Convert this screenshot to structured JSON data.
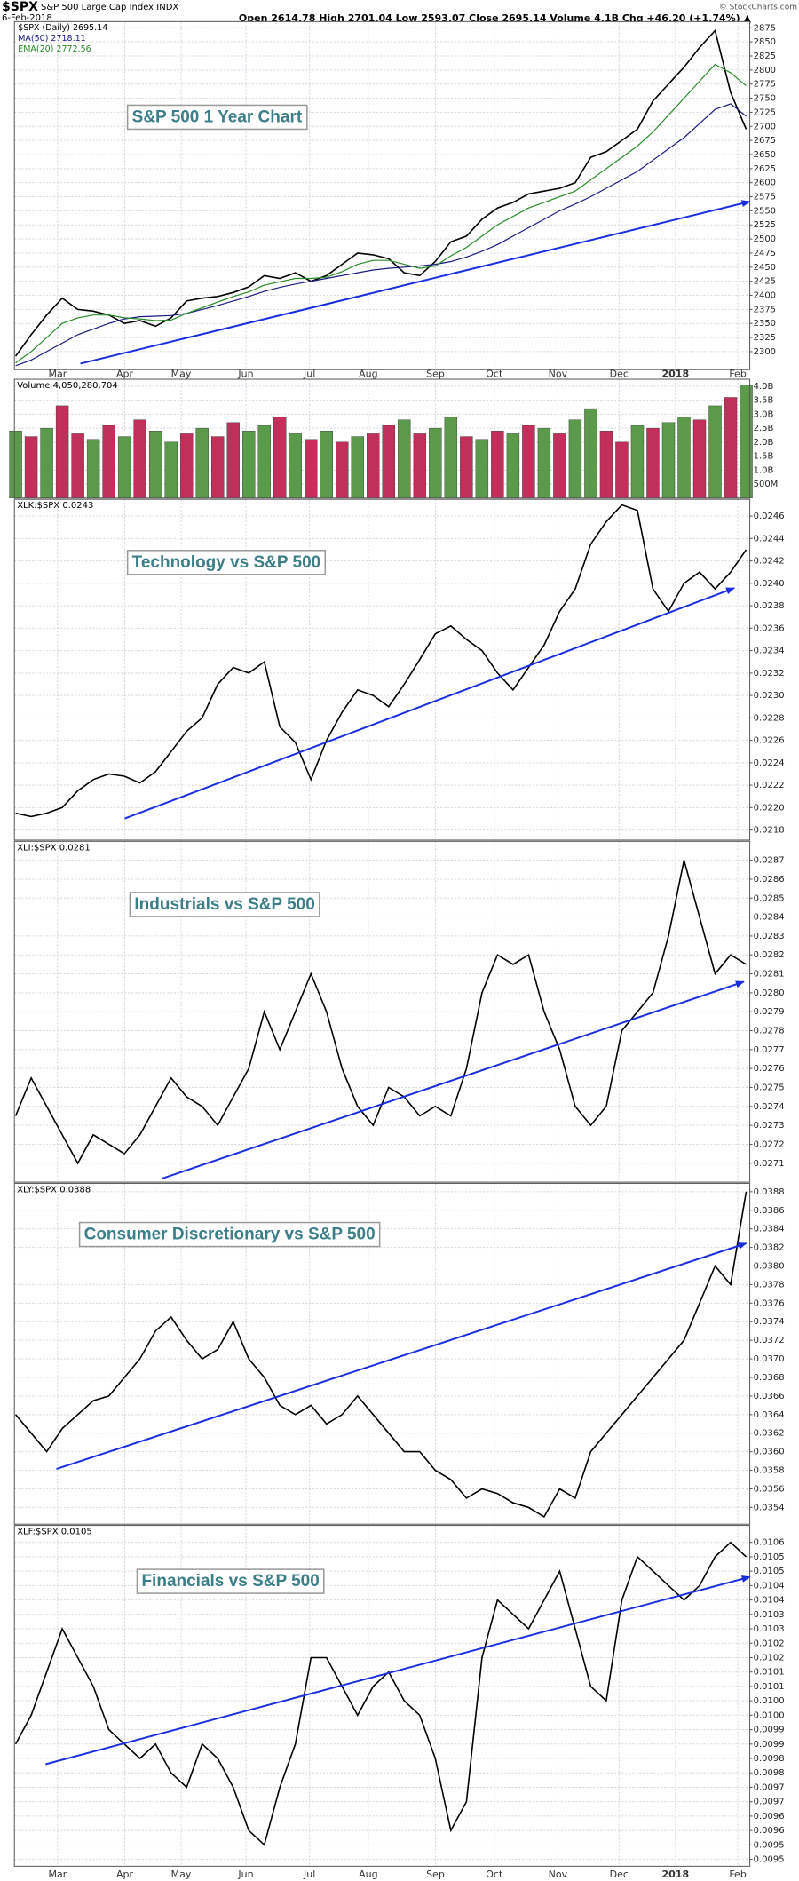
{
  "header": {
    "symbol": "$SPX",
    "name": "S&P 500 Large Cap Index INDX",
    "date": "6-Feb-2018",
    "quote": "Open 2614.78 High 2701.04 Low 2593.07 Close 2695.14 Volume 4.1B Chg +46.20 (+1.74%) ▲",
    "source": "© StockCharts.com"
  },
  "x_labels": [
    "Mar",
    "Apr",
    "May",
    "Jun",
    "Jul",
    "Aug",
    "Sep",
    "Oct",
    "Nov",
    "Dec",
    "2018",
    "Feb"
  ],
  "chart_data": [
    {
      "type": "line",
      "annotation": "S&P 500 1 Year Chart",
      "ylim": [
        2268,
        2886
      ],
      "yticks": [
        2300,
        2325,
        2350,
        2375,
        2400,
        2425,
        2450,
        2475,
        2500,
        2525,
        2550,
        2575,
        2600,
        2625,
        2650,
        2675,
        2700,
        2725,
        2750,
        2775,
        2800,
        2825,
        2850,
        2875
      ],
      "grid": true,
      "series": [
        {
          "name": "$SPX (Daily) 2695.14",
          "color": "#000000",
          "values": [
            2292,
            2330,
            2365,
            2395,
            2375,
            2372,
            2365,
            2350,
            2355,
            2345,
            2360,
            2390,
            2395,
            2398,
            2405,
            2415,
            2435,
            2430,
            2440,
            2425,
            2435,
            2455,
            2475,
            2472,
            2465,
            2440,
            2435,
            2460,
            2495,
            2505,
            2535,
            2555,
            2565,
            2580,
            2585,
            2590,
            2600,
            2645,
            2655,
            2675,
            2695,
            2745,
            2775,
            2805,
            2840,
            2870,
            2760,
            2695
          ]
        },
        {
          "name": "MA(50) 2718.11",
          "color": "#1a1a80",
          "values": [
            2275,
            2285,
            2300,
            2315,
            2330,
            2340,
            2350,
            2358,
            2362,
            2363,
            2364,
            2368,
            2375,
            2382,
            2390,
            2398,
            2407,
            2414,
            2420,
            2425,
            2430,
            2435,
            2440,
            2445,
            2448,
            2450,
            2452,
            2455,
            2460,
            2468,
            2478,
            2490,
            2505,
            2520,
            2535,
            2550,
            2562,
            2575,
            2590,
            2605,
            2620,
            2640,
            2660,
            2680,
            2705,
            2730,
            2740,
            2718
          ]
        },
        {
          "name": "EMA(20) 2772.56",
          "color": "#2a8a2a",
          "values": [
            2280,
            2300,
            2325,
            2350,
            2360,
            2365,
            2365,
            2360,
            2358,
            2355,
            2356,
            2368,
            2378,
            2388,
            2398,
            2406,
            2418,
            2424,
            2430,
            2430,
            2432,
            2442,
            2455,
            2462,
            2462,
            2455,
            2448,
            2452,
            2470,
            2485,
            2505,
            2525,
            2540,
            2555,
            2565,
            2575,
            2585,
            2605,
            2625,
            2645,
            2665,
            2690,
            2720,
            2750,
            2780,
            2810,
            2795,
            2772
          ]
        }
      ]
    },
    {
      "type": "bar",
      "title": "Volume 4,050,280,704",
      "ylim": [
        0,
        4250000000
      ],
      "yticks": [
        {
          "value": 500000000,
          "label": "500M"
        },
        {
          "value": 1000000000,
          "label": "1.0B"
        },
        {
          "value": 1500000000,
          "label": "1.5B"
        },
        {
          "value": 2000000000,
          "label": "2.0B"
        },
        {
          "value": 2500000000,
          "label": "2.5B"
        },
        {
          "value": 3000000000,
          "label": "3.0B"
        },
        {
          "value": 3500000000,
          "label": "3.5B"
        },
        {
          "value": 4000000000,
          "label": "4.0B"
        }
      ],
      "grid": true,
      "values": [
        2400000000.0,
        2200000000.0,
        2500000000.0,
        3300000000.0,
        2300000000.0,
        2100000000.0,
        2600000000.0,
        2200000000.0,
        2800000000.0,
        2400000000.0,
        2000000000.0,
        2300000000.0,
        2500000000.0,
        2200000000.0,
        2700000000.0,
        2400000000.0,
        2600000000.0,
        2900000000.0,
        2300000000.0,
        2100000000.0,
        2400000000.0,
        2000000000.0,
        2200000000.0,
        2300000000.0,
        2600000000.0,
        2800000000.0,
        2300000000.0,
        2500000000.0,
        2900000000.0,
        2200000000.0,
        2100000000.0,
        2400000000.0,
        2300000000.0,
        2600000000.0,
        2500000000.0,
        2300000000.0,
        2800000000.0,
        3200000000.0,
        2400000000.0,
        2000000000.0,
        2600000000.0,
        2500000000.0,
        2700000000.0,
        2900000000.0,
        2800000000.0,
        3300000000.0,
        3600000000.0,
        4050280704
      ],
      "colors": [
        "#5a9a4a",
        "#c0305a",
        "#5a9a4a",
        "#c0305a",
        "#c0305a",
        "#5a9a4a",
        "#c0305a",
        "#5a9a4a",
        "#c0305a",
        "#5a9a4a",
        "#5a9a4a",
        "#c0305a",
        "#5a9a4a",
        "#c0305a",
        "#c0305a",
        "#5a9a4a",
        "#5a9a4a",
        "#c0305a",
        "#5a9a4a",
        "#c0305a",
        "#5a9a4a",
        "#c0305a",
        "#5a9a4a",
        "#c0305a",
        "#c0305a",
        "#5a9a4a",
        "#c0305a",
        "#5a9a4a",
        "#5a9a4a",
        "#c0305a",
        "#5a9a4a",
        "#c0305a",
        "#5a9a4a",
        "#c0305a",
        "#5a9a4a",
        "#c0305a",
        "#5a9a4a",
        "#5a9a4a",
        "#c0305a",
        "#c0305a",
        "#5a9a4a",
        "#c0305a",
        "#5a9a4a",
        "#5a9a4a",
        "#c0305a",
        "#5a9a4a",
        "#c0305a",
        "#5a9a4a"
      ]
    },
    {
      "type": "line",
      "title": "XLK:$SPX 0.0243",
      "annotation": "Technology vs S&P 500",
      "color": "#000000",
      "ylim": [
        0.02171,
        0.02475
      ],
      "yticks": [
        0.0218,
        {
          "value": 0.022,
          "label": "0.0220"
        },
        0.0222,
        0.0224,
        0.0226,
        0.0228,
        {
          "value": 0.023,
          "label": "0.0230"
        },
        0.0232,
        0.0234,
        0.0236,
        0.0238,
        {
          "value": 0.024,
          "label": "0.0240"
        },
        0.0242,
        0.0244,
        0.0246
      ],
      "grid": true,
      "values": [
        0.02195,
        0.02192,
        0.02195,
        0.022,
        0.02215,
        0.02225,
        0.0223,
        0.02228,
        0.02222,
        0.02232,
        0.0225,
        0.02268,
        0.0228,
        0.0231,
        0.02325,
        0.0232,
        0.0233,
        0.02272,
        0.02258,
        0.02225,
        0.0226,
        0.02285,
        0.02305,
        0.023,
        0.0229,
        0.0231,
        0.02332,
        0.02355,
        0.02362,
        0.0235,
        0.0234,
        0.0232,
        0.02305,
        0.02325,
        0.02345,
        0.02375,
        0.02395,
        0.02435,
        0.02455,
        0.0247,
        0.02465,
        0.02395,
        0.02375,
        0.024,
        0.0241,
        0.02395,
        0.0241,
        0.0243
      ]
    },
    {
      "type": "line",
      "title": "XLI:$SPX 0.0281",
      "annotation": "Industrials vs S&P 500",
      "color": "#000000",
      "ylim": [
        0.027,
        0.0288
      ],
      "yticks": [
        0.0271,
        0.0272,
        0.0273,
        0.0274,
        0.0275,
        0.0276,
        0.0277,
        0.0278,
        0.0279,
        {
          "value": 0.028,
          "label": "0.0280"
        },
        0.0281,
        0.0282,
        0.0283,
        0.0284,
        0.0285,
        0.0286,
        0.0287
      ],
      "grid": true,
      "values": [
        0.02735,
        0.02755,
        0.0274,
        0.02725,
        0.0271,
        0.02725,
        0.0272,
        0.02715,
        0.02725,
        0.0274,
        0.02755,
        0.02745,
        0.0274,
        0.0273,
        0.02745,
        0.0276,
        0.0279,
        0.0277,
        0.0279,
        0.0281,
        0.0279,
        0.0276,
        0.0274,
        0.0273,
        0.0275,
        0.02745,
        0.02735,
        0.0274,
        0.02735,
        0.0276,
        0.028,
        0.0282,
        0.02815,
        0.0282,
        0.0279,
        0.0277,
        0.0274,
        0.0273,
        0.0274,
        0.0278,
        0.0279,
        0.028,
        0.0283,
        0.0287,
        0.0284,
        0.0281,
        0.0282,
        0.02815
      ]
    },
    {
      "type": "line",
      "title": "XLY:$SPX 0.0388",
      "annotation": "Consumer Discretionary vs S&P 500",
      "color": "#000000",
      "ylim": [
        0.03522,
        0.03889
      ],
      "yticks": [
        0.0354,
        0.0356,
        0.0358,
        {
          "value": 0.036,
          "label": "0.0360"
        },
        0.0362,
        0.0364,
        0.0366,
        0.0368,
        {
          "value": 0.037,
          "label": "0.0370"
        },
        0.0372,
        0.0374,
        0.0376,
        0.0378,
        {
          "value": 0.038,
          "label": "0.0380"
        },
        0.0382,
        0.0384,
        0.0386,
        0.0388
      ],
      "grid": true,
      "values": [
        0.0364,
        0.0362,
        0.036,
        0.03625,
        0.0364,
        0.03655,
        0.0366,
        0.0368,
        0.037,
        0.0373,
        0.03745,
        0.0372,
        0.037,
        0.0371,
        0.0374,
        0.037,
        0.0368,
        0.0365,
        0.0364,
        0.0365,
        0.0363,
        0.0364,
        0.0366,
        0.0364,
        0.0362,
        0.036,
        0.036,
        0.0358,
        0.0357,
        0.0355,
        0.0356,
        0.03555,
        0.03545,
        0.0354,
        0.0353,
        0.0356,
        0.0355,
        0.036,
        0.0362,
        0.0364,
        0.0366,
        0.0368,
        0.037,
        0.0372,
        0.0376,
        0.038,
        0.0378,
        0.0388
      ]
    },
    {
      "type": "line",
      "title": "XLF:$SPX 0.0105",
      "annotation": "Financials vs S&P 500",
      "color": "#000000",
      "ylim": [
        0.009476,
        0.010659
      ],
      "yticks": [
        {
          "value": 0.0106,
          "label": "0.0106"
        },
        {
          "value": 0.01055,
          "label": "0.0105"
        },
        {
          "value": 0.0105,
          "label": "0.0105"
        },
        {
          "value": 0.01045,
          "label": "0.0104"
        },
        {
          "value": 0.0104,
          "label": "0.0104"
        },
        {
          "value": 0.01035,
          "label": "0.0103"
        },
        {
          "value": 0.0103,
          "label": "0.0103"
        },
        {
          "value": 0.01025,
          "label": "0.0102"
        },
        {
          "value": 0.0102,
          "label": "0.0102"
        },
        {
          "value": 0.01015,
          "label": "0.0101"
        },
        {
          "value": 0.0101,
          "label": "0.0101"
        },
        {
          "value": 0.01005,
          "label": "0.0100"
        },
        {
          "value": 0.01,
          "label": "0.0100"
        },
        {
          "value": 0.00995,
          "label": "0.0099"
        },
        {
          "value": 0.0099,
          "label": "0.0099"
        },
        {
          "value": 0.00985,
          "label": "0.0098"
        },
        {
          "value": 0.0098,
          "label": "0.0098"
        },
        {
          "value": 0.00975,
          "label": "0.0097"
        },
        {
          "value": 0.0097,
          "label": "0.0097"
        },
        {
          "value": 0.00965,
          "label": "0.0096"
        },
        {
          "value": 0.0096,
          "label": "0.0096"
        },
        {
          "value": 0.00955,
          "label": "0.0095"
        },
        {
          "value": 0.0095,
          "label": "0.0095"
        }
      ],
      "grid": true,
      "values": [
        0.0099,
        0.01,
        0.01015,
        0.0103,
        0.0102,
        0.0101,
        0.00995,
        0.0099,
        0.00985,
        0.0099,
        0.0098,
        0.00975,
        0.0099,
        0.00985,
        0.00975,
        0.0096,
        0.00955,
        0.00975,
        0.0099,
        0.0102,
        0.0102,
        0.0101,
        0.01,
        0.0101,
        0.01015,
        0.01005,
        0.01,
        0.00985,
        0.0096,
        0.0097,
        0.0102,
        0.0104,
        0.01035,
        0.0103,
        0.0104,
        0.0105,
        0.0103,
        0.0101,
        0.01005,
        0.0104,
        0.01055,
        0.0105,
        0.01045,
        0.0104,
        0.01045,
        0.01055,
        0.0106,
        0.01055
      ]
    }
  ]
}
